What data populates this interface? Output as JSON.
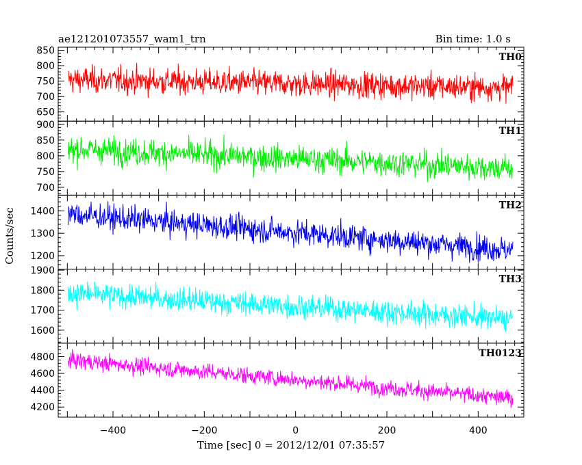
{
  "header": {
    "title": "ae121201073557_wam1_trn",
    "bin_time": "Bin time: 1.0 s"
  },
  "chart_data": {
    "type": "line",
    "xlabel": "Time [sec] 0 = 2012/12/01 07:35:57",
    "ylabel": "Counts/sec",
    "xlim": [
      -520,
      500
    ],
    "x_ticks": [
      -400,
      -200,
      0,
      200,
      400
    ],
    "x_tick_labels": [
      "−400",
      "−200",
      "0",
      "200",
      "400"
    ],
    "x_range": [
      -498,
      476
    ],
    "bin_time": 1.0,
    "grid": false,
    "panels": [
      {
        "name": "TH0",
        "color": "#ff0000",
        "ylim": [
          620,
          860
        ],
        "yticks": [
          650,
          700,
          750,
          800,
          850
        ],
        "ytick_labels": [
          "650",
          "700",
          "750",
          "800",
          "850"
        ],
        "mean_start": 755,
        "mean_end": 728,
        "noise": 30
      },
      {
        "name": "TH1",
        "color": "#00ee00",
        "ylim": [
          675,
          910
        ],
        "yticks": [
          700,
          750,
          800,
          850,
          900
        ],
        "ytick_labels": [
          "700",
          "750",
          "800",
          "850",
          "900"
        ],
        "mean_start": 822,
        "mean_end": 760,
        "noise": 30
      },
      {
        "name": "TH2",
        "color": "#0000ee",
        "ylim": [
          1140,
          1470
        ],
        "yticks": [
          1200,
          1300,
          1400
        ],
        "ytick_labels": [
          "1200",
          "1300",
          "1400"
        ],
        "mean_start": 1385,
        "mean_end": 1225,
        "noise": 40
      },
      {
        "name": "TH3",
        "color": "#00ffff",
        "ylim": [
          1535,
          1905
        ],
        "yticks": [
          1600,
          1700,
          1800,
          1900
        ],
        "ytick_labels": [
          "1600",
          "1700",
          "1800",
          "1900"
        ],
        "mean_start": 1785,
        "mean_end": 1655,
        "noise": 42
      },
      {
        "name": "TH0123",
        "color": "#ff00ff",
        "ylim": [
          4080,
          4960
        ],
        "yticks": [
          4200,
          4400,
          4600,
          4800
        ],
        "ytick_labels": [
          "4200",
          "4400",
          "4600",
          "4800"
        ],
        "mean_start": 4760,
        "mean_end": 4300,
        "noise": 70
      }
    ]
  }
}
